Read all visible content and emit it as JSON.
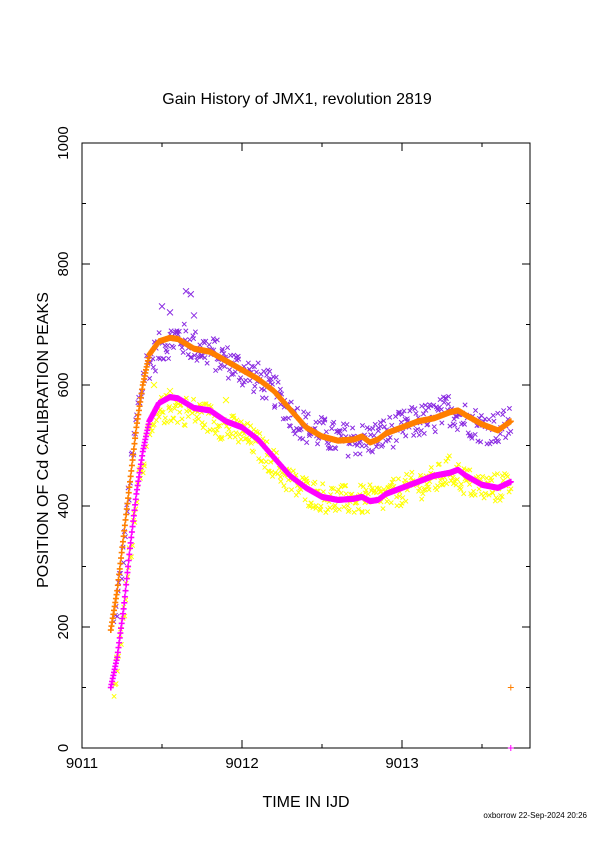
{
  "chart_data": {
    "type": "scatter",
    "title": "Gain History of JMX1, revolution 2819",
    "xlabel": "TIME IN IJD",
    "ylabel": "POSITION OF Cd CALIBRATION PEAKS",
    "xlim": [
      9011,
      9013.8
    ],
    "ylim": [
      0,
      1000
    ],
    "x_ticks": [
      9011,
      9012,
      9013
    ],
    "y_ticks": [
      0,
      200,
      400,
      600,
      800,
      1000
    ],
    "grid": false,
    "footer": "oxborrow 22-Sep-2024 20:26",
    "series": [
      {
        "marker": "x",
        "color": "#8a2be2",
        "curve_x": [
          9011.2,
          9011.25,
          9011.3,
          9011.35,
          9011.4,
          9011.5,
          9011.6,
          9011.7,
          9011.8,
          9011.9,
          9012.0,
          9012.1,
          9012.2,
          9012.3,
          9012.4,
          9012.5,
          9012.6,
          9012.7,
          9012.8,
          9012.9,
          9013.0,
          9013.1,
          9013.2,
          9013.3,
          9013.4,
          9013.5,
          9013.6,
          9013.68
        ],
        "curve_y": [
          200,
          300,
          440,
          560,
          630,
          665,
          680,
          665,
          655,
          640,
          625,
          610,
          590,
          555,
          530,
          520,
          510,
          510,
          510,
          520,
          530,
          540,
          545,
          560,
          545,
          530,
          530,
          535
        ],
        "scatter": 28,
        "outliers": [
          [
            9011.65,
            755
          ],
          [
            9011.68,
            750
          ],
          [
            9011.5,
            730
          ],
          [
            9011.55,
            720
          ],
          [
            9011.7,
            715
          ]
        ]
      },
      {
        "marker": "x",
        "color": "#ffff00",
        "curve_x": [
          9011.2,
          9011.25,
          9011.3,
          9011.35,
          9011.4,
          9011.5,
          9011.6,
          9011.7,
          9011.8,
          9011.9,
          9012.0,
          9012.1,
          9012.2,
          9012.3,
          9012.4,
          9012.5,
          9012.6,
          9012.7,
          9012.8,
          9012.9,
          9013.0,
          9013.1,
          9013.2,
          9013.3,
          9013.4,
          9013.5,
          9013.6,
          9013.68
        ],
        "curve_y": [
          100,
          190,
          320,
          440,
          500,
          560,
          560,
          555,
          545,
          530,
          520,
          500,
          470,
          440,
          425,
          415,
          410,
          410,
          410,
          415,
          425,
          435,
          440,
          460,
          440,
          430,
          430,
          440
        ],
        "scatter": 25,
        "outliers": [
          [
            9011.45,
            600
          ],
          [
            9011.55,
            590
          ],
          [
            9011.9,
            575
          ]
        ]
      },
      {
        "marker": "+",
        "color": "#ff7f00",
        "curve_x": [
          9011.18,
          9011.22,
          9011.26,
          9011.3,
          9011.34,
          9011.38,
          9011.42,
          9011.48,
          9011.55,
          9011.6,
          9011.7,
          9011.8,
          9011.9,
          9012.0,
          9012.1,
          9012.2,
          9012.3,
          9012.4,
          9012.5,
          9012.6,
          9012.7,
          9012.75,
          9012.8,
          9012.85,
          9012.9,
          9013.0,
          9013.1,
          9013.2,
          9013.3,
          9013.35,
          9013.4,
          9013.5,
          9013.6,
          9013.68
        ],
        "curve_y": [
          195,
          260,
          350,
          440,
          530,
          600,
          650,
          672,
          678,
          676,
          660,
          655,
          640,
          625,
          610,
          590,
          560,
          530,
          515,
          508,
          510,
          515,
          505,
          510,
          520,
          530,
          540,
          545,
          555,
          558,
          550,
          535,
          525,
          540
        ],
        "outliers": [
          [
            9013.68,
            100
          ]
        ]
      },
      {
        "marker": "+",
        "color": "#ff00ff",
        "curve_x": [
          9011.18,
          9011.22,
          9011.26,
          9011.3,
          9011.34,
          9011.38,
          9011.42,
          9011.48,
          9011.55,
          9011.6,
          9011.7,
          9011.8,
          9011.9,
          9012.0,
          9012.1,
          9012.2,
          9012.3,
          9012.4,
          9012.5,
          9012.6,
          9012.7,
          9012.75,
          9012.8,
          9012.85,
          9012.9,
          9013.0,
          9013.1,
          9013.2,
          9013.3,
          9013.35,
          9013.4,
          9013.5,
          9013.6,
          9013.68
        ],
        "curve_y": [
          100,
          150,
          230,
          330,
          420,
          490,
          540,
          570,
          580,
          578,
          562,
          558,
          540,
          530,
          510,
          480,
          450,
          430,
          415,
          410,
          412,
          415,
          408,
          410,
          420,
          430,
          440,
          450,
          455,
          460,
          450,
          435,
          430,
          440
        ],
        "outliers": [
          [
            9013.68,
            0
          ]
        ]
      }
    ]
  }
}
